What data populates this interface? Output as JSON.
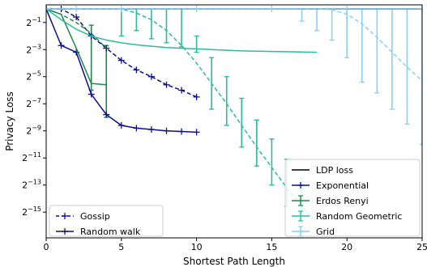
{
  "chart_data": {
    "type": "line",
    "title": "",
    "xlabel": "Shortest Path Length",
    "ylabel": "Privacy Loss",
    "xlim": [
      0,
      25
    ],
    "ylim_log2": [
      -16.9,
      0.3
    ],
    "y_scale": "log2",
    "grid": false,
    "x_ticks": [
      0,
      5,
      10,
      15,
      20,
      25
    ],
    "x_tick_labels": [
      "0",
      "5",
      "10",
      "15",
      "20",
      "25"
    ],
    "y_ticks_log2": [
      -1,
      -3,
      -5,
      -7,
      -9,
      -11,
      -13,
      -15
    ],
    "y_tick_labels": [
      "2−1",
      "2−3",
      "2−5",
      "2−7",
      "2−9",
      "2−11",
      "2−13",
      "2−15"
    ],
    "legends": [
      {
        "placement": "lower right",
        "entries": [
          {
            "label": "LDP loss",
            "color": "#000000",
            "marker": "line"
          },
          {
            "label": "Exponential",
            "color": "#0d0d8c",
            "marker": "plus"
          },
          {
            "label": "Erdos Renyi",
            "color": "#1a8a4a",
            "marker": "errorbar"
          },
          {
            "label": "Random Geometric",
            "color": "#2bbc9c",
            "marker": "errorbar"
          },
          {
            "label": "Grid",
            "color": "#8ecff0",
            "marker": "plus-errorbar"
          }
        ]
      },
      {
        "placement": "lower left",
        "entries": [
          {
            "label": "Gossip",
            "color": "#0d0d8c",
            "style": "dashed"
          },
          {
            "label": "Random walk",
            "color": "#0d0d8c",
            "style": "solid"
          }
        ]
      }
    ],
    "series": [
      {
        "name": "LDP loss",
        "color": "#000000",
        "style": "solid",
        "marker": "none",
        "x": [
          0,
          25
        ],
        "y_log2": [
          0,
          0
        ]
      },
      {
        "name": "Exponential",
        "method": "Gossip",
        "color": "#0d0d8c",
        "style": "dashed",
        "marker": "plus",
        "x": [
          0,
          1,
          2,
          3,
          4,
          5,
          6,
          7,
          8,
          9,
          10
        ],
        "y_log2": [
          0,
          0,
          -0.6,
          -2.0,
          -2.9,
          -3.8,
          -4.5,
          -5.0,
          -5.6,
          -6.0,
          -6.5
        ]
      },
      {
        "name": "Exponential",
        "method": "Random walk",
        "color": "#0d0d8c",
        "style": "solid",
        "marker": "plus",
        "x": [
          0,
          1,
          2,
          3,
          4,
          5,
          6,
          7,
          8,
          9,
          10
        ],
        "y_log2": [
          0,
          -2.7,
          -3.2,
          -6.3,
          -7.8,
          -8.6,
          -8.8,
          -8.9,
          -9.0,
          -9.05,
          -9.1
        ]
      },
      {
        "name": "Erdos Renyi",
        "method": "Gossip",
        "color": "#1a8a4a",
        "style": "dashed",
        "marker": "none",
        "x": [
          0,
          1,
          2,
          3,
          4
        ],
        "y_log2": [
          0,
          -0.4,
          -1.0,
          -1.8,
          -2.9
        ]
      },
      {
        "name": "Erdos Renyi",
        "method": "Random walk",
        "color": "#1a8a4a",
        "style": "solid",
        "marker": "none",
        "x": [
          0,
          1,
          2,
          3,
          4
        ],
        "y_log2": [
          0,
          -0.4,
          -2.9,
          -5.5,
          -5.6
        ]
      },
      {
        "name": "Random Geometric",
        "method": "Gossip",
        "color": "#2bbc9c",
        "style": "dashed",
        "marker": "none",
        "x": [
          0,
          1,
          2,
          3,
          4,
          5,
          6,
          7,
          8,
          9,
          10,
          11,
          12,
          13,
          14,
          15,
          16,
          17,
          18
        ],
        "y_log2": [
          0,
          0,
          0,
          0,
          0,
          0,
          -0.3,
          -0.8,
          -1.6,
          -2.7,
          -4.0,
          -5.5,
          -7.0,
          -8.6,
          -10.2,
          -11.7,
          -13.2,
          -14.6,
          -15.8
        ]
      },
      {
        "name": "Random Geometric",
        "method": "Random walk",
        "color": "#2bbc9c",
        "style": "solid",
        "marker": "none",
        "x": [
          0,
          1,
          2,
          3,
          4,
          5,
          6,
          7,
          8,
          9,
          10,
          11,
          12,
          13,
          14,
          15,
          16,
          17,
          18
        ],
        "y_log2": [
          0,
          -0.8,
          -1.5,
          -2.0,
          -2.3,
          -2.5,
          -2.65,
          -2.75,
          -2.85,
          -2.9,
          -2.95,
          -3.0,
          -3.05,
          -3.1,
          -3.12,
          -3.14,
          -3.16,
          -3.18,
          -3.2
        ]
      },
      {
        "name": "Grid",
        "method": "Gossip",
        "color": "#8ecff0",
        "style": "dashed",
        "marker": "none",
        "x": [
          0,
          5,
          10,
          12,
          14,
          16,
          18,
          19,
          20,
          21,
          22,
          23,
          24,
          25
        ],
        "y_log2": [
          0,
          0,
          0,
          0,
          0,
          0,
          0,
          -0.05,
          -0.4,
          -1.1,
          -2.1,
          -3.2,
          -4.3,
          -5.3
        ]
      },
      {
        "name": "Grid",
        "method": "Random walk",
        "color": "#8ecff0",
        "style": "solid",
        "marker": "plus",
        "x": [
          0,
          2,
          5,
          10,
          15,
          20,
          25
        ],
        "y_log2": [
          0,
          0,
          0,
          0,
          0,
          0,
          0
        ]
      }
    ],
    "error_bars": [
      {
        "color": "#1a8a4a",
        "x": 4,
        "low_log2": -8.0,
        "high_log2": -2.7
      },
      {
        "color": "#1a8a4a",
        "x": 3,
        "low_log2": -6.0,
        "high_log2": -1.2
      },
      {
        "color": "#2bbc9c",
        "x": 5,
        "low_log2": -2.0,
        "high_log2": 0
      },
      {
        "color": "#2bbc9c",
        "x": 6,
        "low_log2": -1.6,
        "high_log2": 0
      },
      {
        "color": "#2bbc9c",
        "x": 7,
        "low_log2": -2.2,
        "high_log2": 0
      },
      {
        "color": "#2bbc9c",
        "x": 8,
        "low_log2": -2.5,
        "high_log2": 0
      },
      {
        "color": "#2bbc9c",
        "x": 9,
        "low_log2": -2.8,
        "high_log2": 0
      },
      {
        "color": "#2bbc9c",
        "x": 10,
        "low_log2": -3.2,
        "high_log2": -2.0
      },
      {
        "color": "#2bbc9c",
        "x": 11,
        "low_log2": -7.4,
        "high_log2": -3.6
      },
      {
        "color": "#2bbc9c",
        "x": 12,
        "low_log2": -8.6,
        "high_log2": -5.0
      },
      {
        "color": "#2bbc9c",
        "x": 13,
        "low_log2": -10.2,
        "high_log2": -6.6
      },
      {
        "color": "#2bbc9c",
        "x": 14,
        "low_log2": -11.6,
        "high_log2": -8.2
      },
      {
        "color": "#2bbc9c",
        "x": 15,
        "low_log2": -13.0,
        "high_log2": -9.6
      },
      {
        "color": "#2bbc9c",
        "x": 16,
        "low_log2": -14.6,
        "high_log2": -11.1
      },
      {
        "color": "#2bbc9c",
        "x": 17,
        "low_log2": -15.8,
        "high_log2": -12.5
      },
      {
        "color": "#8ecff0",
        "x": 17,
        "low_log2": -0.9,
        "high_log2": 0
      },
      {
        "color": "#8ecff0",
        "x": 18,
        "low_log2": -1.6,
        "high_log2": 0
      },
      {
        "color": "#8ecff0",
        "x": 19,
        "low_log2": -2.3,
        "high_log2": 0
      },
      {
        "color": "#8ecff0",
        "x": 20,
        "low_log2": -3.6,
        "high_log2": 0
      },
      {
        "color": "#8ecff0",
        "x": 21,
        "low_log2": -5.4,
        "high_log2": 0
      },
      {
        "color": "#8ecff0",
        "x": 22,
        "low_log2": -6.2,
        "high_log2": 0
      },
      {
        "color": "#8ecff0",
        "x": 23,
        "low_log2": -7.4,
        "high_log2": 0
      },
      {
        "color": "#8ecff0",
        "x": 24,
        "low_log2": -8.5,
        "high_log2": 0
      },
      {
        "color": "#8ecff0",
        "x": 25,
        "low_log2": -10.0,
        "high_log2": 0
      }
    ]
  }
}
